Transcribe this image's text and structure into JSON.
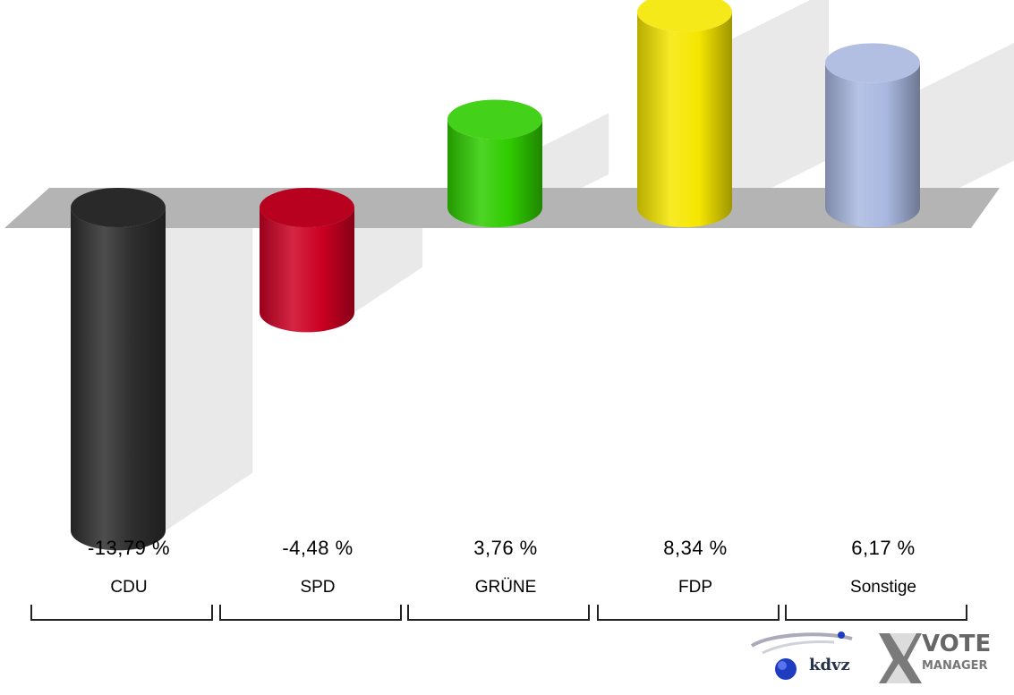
{
  "chart_data": {
    "type": "bar",
    "style": "3d-cylinder",
    "categories": [
      "CDU",
      "SPD",
      "GRÜNE",
      "FDP",
      "Sonstige"
    ],
    "values": [
      -13.79,
      -4.48,
      3.76,
      8.34,
      6.17
    ],
    "value_labels": [
      "-13,79 %",
      "-4,48 %",
      "3,76 %",
      "8,34 %",
      "6,17 %"
    ],
    "colors": [
      "#2e2e2e",
      "#cc0022",
      "#2fcc00",
      "#f5e600",
      "#a9b8e0"
    ],
    "ylim": [
      -14,
      9
    ],
    "grid": false,
    "legend": "none"
  },
  "logos": {
    "kdvz_icon": "kdvz-globe-icon",
    "kdvz_text": "kdvz",
    "vote_icon": "x-cross-icon",
    "vote_text": "VOTE",
    "manager_text": "MANAGER"
  }
}
